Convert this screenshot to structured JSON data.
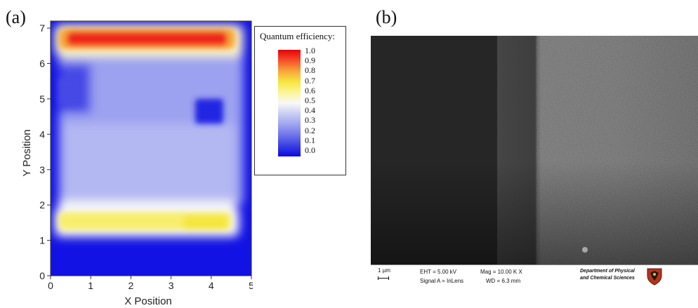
{
  "panels": {
    "a_label": "(a)",
    "b_label": "(b)"
  },
  "chart_data": {
    "type": "heatmap",
    "xlabel": "X Position",
    "ylabel": "Y Position",
    "xlim": [
      0,
      5
    ],
    "ylim": [
      0,
      7.2
    ],
    "xticks": [
      "0",
      "1",
      "2",
      "3",
      "4",
      "5"
    ],
    "yticks": [
      "0",
      "1",
      "2",
      "3",
      "4",
      "5",
      "6",
      "7"
    ],
    "legend_title": "Quantum efficiency:",
    "colorbar_ticks": [
      "1.0",
      "0.9",
      "0.8",
      "0.7",
      "0.6",
      "0.5",
      "0.4",
      "0.3",
      "0.2",
      "0.1",
      "0.0"
    ],
    "colorbar_range": [
      0,
      1
    ],
    "colorbar_placement": "right",
    "regions": [
      {
        "label": "top stripe",
        "x_range": [
          0.2,
          4.6
        ],
        "y_range": [
          6.4,
          7.0
        ],
        "value": 0.95
      },
      {
        "label": "bottom stripe",
        "x_range": [
          0.2,
          4.5
        ],
        "y_range": [
          1.3,
          1.8
        ],
        "value": 0.7
      },
      {
        "label": "central area",
        "x_range": [
          0.2,
          4.8
        ],
        "y_range": [
          2.0,
          6.3
        ],
        "value": 0.3
      },
      {
        "label": "dark spot",
        "x_range": [
          3.6,
          4.3
        ],
        "y_range": [
          4.3,
          5.0
        ],
        "value": 0.05
      },
      {
        "label": "background",
        "x_range": [
          0,
          5
        ],
        "y_range": [
          0,
          7.2
        ],
        "value": 0.0
      }
    ],
    "colors": {
      "high": "#e8000b",
      "mid": "#f8f8f8",
      "low": "#0a0ae0"
    }
  },
  "sem": {
    "scale_label": "1 µm",
    "eht": "EHT =  5.00 kV",
    "signal": "Signal A = InLens",
    "mag": "Mag =  10.00 K X",
    "wd": "WD =  6.3 mm",
    "dept_line1": "Department of Physical",
    "dept_line2": "and Chemical Sciences",
    "crest_icon": "university-crest-icon"
  }
}
